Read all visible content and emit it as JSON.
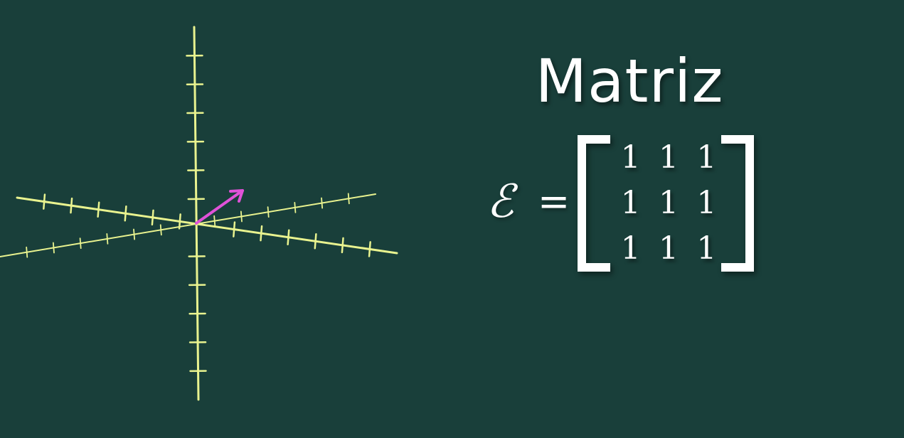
{
  "title": "Matriz",
  "matrix_symbol": "ℰ",
  "equals_sign": "=",
  "matrix": {
    "rows": [
      [
        "1",
        "1",
        "1"
      ],
      [
        "1",
        "1",
        "1"
      ],
      [
        "1",
        "1",
        "1"
      ]
    ]
  },
  "colors": {
    "background": "#193f3a",
    "axis": "#e9f38f",
    "vector": "#e052d8",
    "text": "#ffffff"
  }
}
